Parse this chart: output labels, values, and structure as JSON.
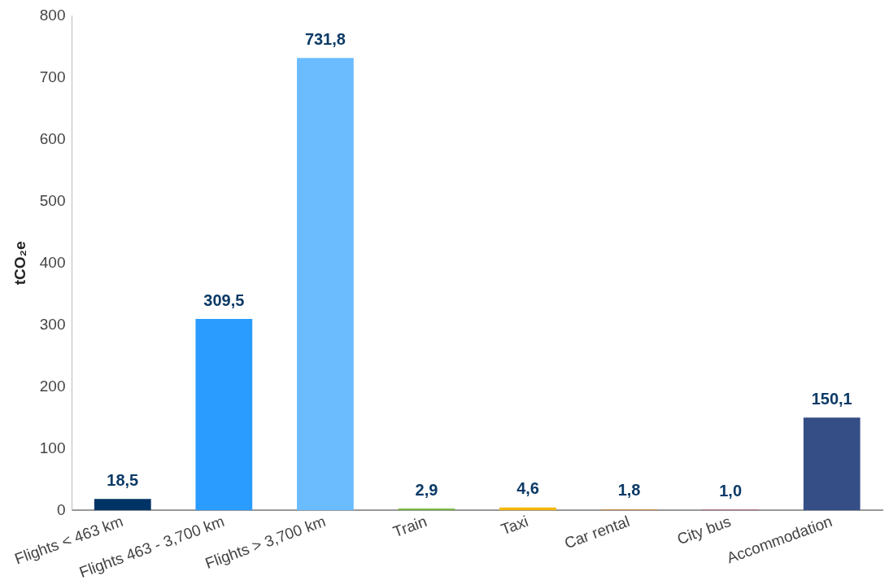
{
  "chart_data": {
    "type": "bar",
    "ylabel": "tCO₂e",
    "categories": [
      "Flights < 463 km",
      "Flights 463 - 3,700 km",
      "Flights > 3,700 km",
      "Train",
      "Taxi",
      "Car rental",
      "City bus",
      "Accommodation"
    ],
    "values": [
      18.5,
      309.5,
      731.8,
      2.9,
      4.6,
      1.8,
      1.0,
      150.1
    ],
    "colors": [
      "#003366",
      "#2a9bff",
      "#6bbcff",
      "#7ab648",
      "#f5b400",
      "#c0884a",
      "#c0506a",
      "#354e86"
    ],
    "value_labels": [
      "18,5",
      "309,5",
      "731,8",
      "2,9",
      "4,6",
      "1,8",
      "1,0",
      "150,1"
    ],
    "ylim": [
      0,
      800
    ],
    "yticks": [
      0,
      100,
      200,
      300,
      400,
      500,
      600,
      700,
      800
    ],
    "grid": false,
    "legend": false
  }
}
